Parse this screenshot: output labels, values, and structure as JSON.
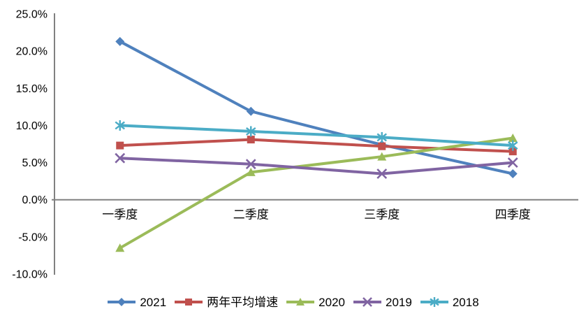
{
  "chart_data": {
    "type": "line",
    "title": "",
    "xlabel": "",
    "ylabel": "",
    "categories": [
      "一季度",
      "二季度",
      "三季度",
      "四季度"
    ],
    "series": [
      {
        "name": "2021",
        "color": "#4F81BD",
        "marker": "diamond",
        "values": [
          21.3,
          11.9,
          7.4,
          3.5
        ]
      },
      {
        "name": "两年平均增速",
        "color": "#C0504D",
        "marker": "square",
        "values": [
          7.3,
          8.1,
          7.2,
          6.5
        ]
      },
      {
        "name": "2020",
        "color": "#9BBB59",
        "marker": "triangle",
        "values": [
          -6.5,
          3.7,
          5.8,
          8.3
        ]
      },
      {
        "name": "2019",
        "color": "#8064A2",
        "marker": "x",
        "values": [
          5.6,
          4.8,
          3.5,
          5.0
        ]
      },
      {
        "name": "2018",
        "color": "#4BACC6",
        "marker": "asterisk",
        "values": [
          10.0,
          9.2,
          8.4,
          7.3
        ]
      }
    ],
    "y_ticks": [
      {
        "value": 25,
        "label": "25.0%"
      },
      {
        "value": 20,
        "label": "20.0%"
      },
      {
        "value": 15,
        "label": "15.0%"
      },
      {
        "value": 10,
        "label": "10.0%"
      },
      {
        "value": 5,
        "label": "5.0%"
      },
      {
        "value": 0,
        "label": "0.0%"
      },
      {
        "value": -5,
        "label": "-5.0%"
      },
      {
        "value": -10,
        "label": "-10.0%"
      }
    ],
    "ylim": [
      -10,
      25
    ],
    "grid": false,
    "legend_position": "bottom",
    "axis_color": "#808080",
    "text_color": "#000000",
    "background": "#FFFFFF"
  }
}
